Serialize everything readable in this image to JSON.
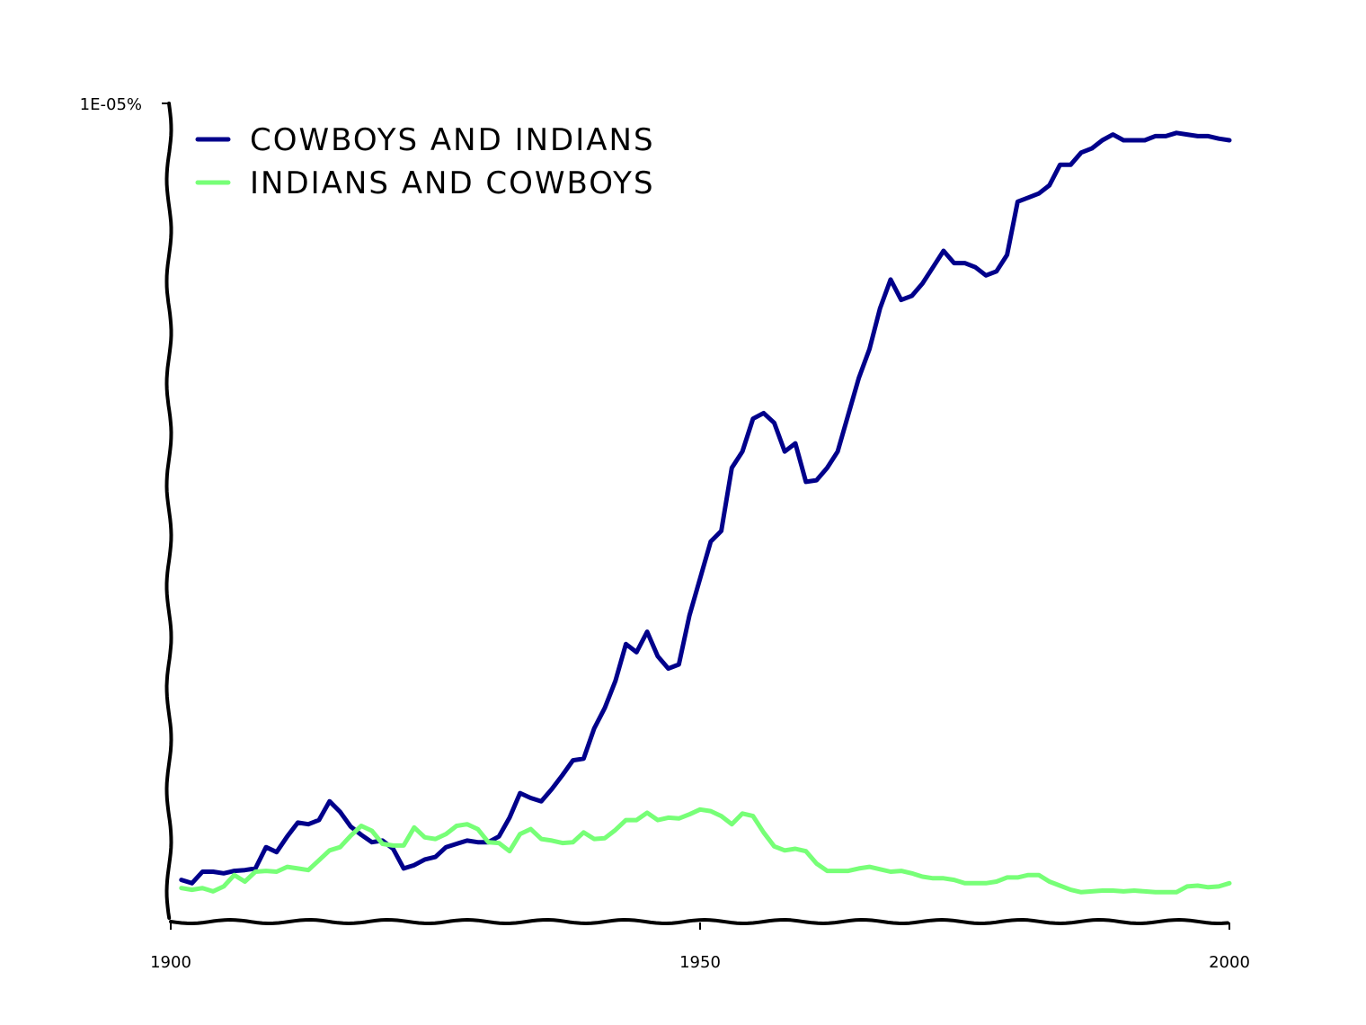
{
  "chart_data": {
    "type": "line",
    "title": "",
    "xlabel": "",
    "ylabel": "",
    "xlim": [
      1900,
      2000
    ],
    "ylim": [
      0,
      1
    ],
    "x_ticks": [
      "1900",
      "1950",
      "2000"
    ],
    "y_tick_label": "1E-05%",
    "legend_position": "top-left",
    "x": [
      1901,
      1902,
      1903,
      1904,
      1905,
      1906,
      1907,
      1908,
      1909,
      1910,
      1911,
      1912,
      1913,
      1914,
      1915,
      1916,
      1917,
      1918,
      1919,
      1920,
      1921,
      1922,
      1923,
      1924,
      1925,
      1926,
      1927,
      1928,
      1929,
      1930,
      1931,
      1932,
      1933,
      1934,
      1935,
      1936,
      1937,
      1938,
      1939,
      1940,
      1941,
      1942,
      1943,
      1944,
      1945,
      1946,
      1947,
      1948,
      1949,
      1950,
      1951,
      1952,
      1953,
      1954,
      1955,
      1956,
      1957,
      1958,
      1959,
      1960,
      1961,
      1962,
      1963,
      1964,
      1965,
      1966,
      1967,
      1968,
      1969,
      1970,
      1971,
      1972,
      1973,
      1974,
      1975,
      1976,
      1977,
      1978,
      1979,
      1980,
      1981,
      1982,
      1983,
      1984,
      1985,
      1986,
      1987,
      1988,
      1989,
      1990,
      1991,
      1992,
      1993,
      1994,
      1995,
      1996,
      1997,
      1998,
      1999,
      2000
    ],
    "series": [
      {
        "name": "COWBOYS AND INDIANS",
        "color": "#00008b",
        "values": [
          0.052,
          0.048,
          0.062,
          0.062,
          0.06,
          0.063,
          0.064,
          0.066,
          0.092,
          0.086,
          0.105,
          0.122,
          0.12,
          0.125,
          0.148,
          0.135,
          0.117,
          0.107,
          0.098,
          0.1,
          0.09,
          0.066,
          0.07,
          0.077,
          0.08,
          0.092,
          0.096,
          0.1,
          0.098,
          0.098,
          0.105,
          0.128,
          0.158,
          0.152,
          0.148,
          0.163,
          0.18,
          0.198,
          0.2,
          0.237,
          0.262,
          0.295,
          0.34,
          0.33,
          0.355,
          0.325,
          0.31,
          0.315,
          0.375,
          0.42,
          0.465,
          0.478,
          0.555,
          0.575,
          0.615,
          0.622,
          0.61,
          0.575,
          0.585,
          0.538,
          0.54,
          0.555,
          0.575,
          0.62,
          0.665,
          0.7,
          0.75,
          0.785,
          0.76,
          0.765,
          0.78,
          0.8,
          0.82,
          0.805,
          0.805,
          0.8,
          0.79,
          0.795,
          0.815,
          0.88,
          0.885,
          0.89,
          0.9,
          0.925,
          0.925,
          0.94,
          0.945,
          0.955,
          0.962,
          0.955,
          0.955,
          0.955,
          0.96,
          0.96,
          0.964,
          0.962,
          0.96,
          0.96,
          0.957,
          0.955
        ],
        "legend_label": "COWBOYS AND INDIANS"
      },
      {
        "name": "INDIANS AND COWBOYS",
        "color": "#77ff77",
        "values": [
          0.042,
          0.04,
          0.042,
          0.038,
          0.044,
          0.058,
          0.05,
          0.062,
          0.063,
          0.062,
          0.068,
          0.066,
          0.064,
          0.076,
          0.088,
          0.092,
          0.106,
          0.118,
          0.112,
          0.096,
          0.094,
          0.094,
          0.116,
          0.104,
          0.102,
          0.108,
          0.118,
          0.12,
          0.114,
          0.098,
          0.097,
          0.087,
          0.108,
          0.114,
          0.102,
          0.1,
          0.097,
          0.098,
          0.11,
          0.102,
          0.103,
          0.113,
          0.125,
          0.125,
          0.134,
          0.125,
          0.128,
          0.127,
          0.132,
          0.138,
          0.136,
          0.13,
          0.12,
          0.133,
          0.13,
          0.11,
          0.093,
          0.088,
          0.09,
          0.087,
          0.072,
          0.063,
          0.063,
          0.063,
          0.066,
          0.068,
          0.065,
          0.062,
          0.063,
          0.06,
          0.056,
          0.054,
          0.054,
          0.052,
          0.048,
          0.048,
          0.048,
          0.05,
          0.055,
          0.055,
          0.058,
          0.058,
          0.05,
          0.045,
          0.04,
          0.037,
          0.038,
          0.039,
          0.039,
          0.038,
          0.039,
          0.038,
          0.037,
          0.037,
          0.037,
          0.044,
          0.045,
          0.043,
          0.044,
          0.048
        ],
        "legend_label": "INDIANS AND COWBOYS"
      }
    ]
  }
}
